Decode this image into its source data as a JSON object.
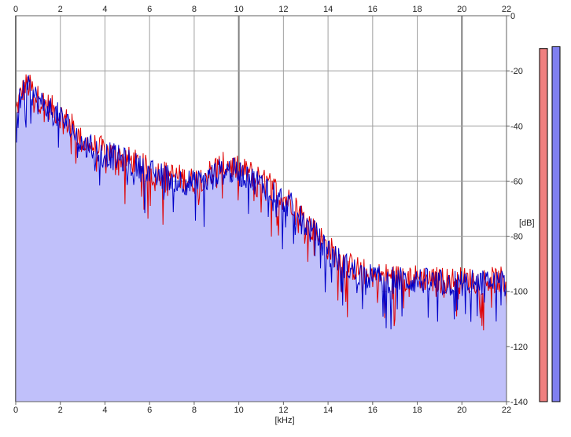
{
  "chart_data": {
    "type": "line",
    "title": "",
    "xlabel": "[kHz]",
    "ylabel": "[dB]",
    "xlim": [
      0,
      22
    ],
    "ylim": [
      -140,
      0
    ],
    "x_ticks": [
      0,
      2,
      4,
      6,
      8,
      10,
      12,
      14,
      16,
      18,
      20,
      22
    ],
    "y_ticks": [
      0,
      -20,
      -40,
      -60,
      -80,
      -100,
      -120,
      -140
    ],
    "major_x_gridlines": [
      0,
      10,
      20
    ],
    "grid": true,
    "colors": {
      "fill": "#c0c0fa",
      "grid": "#a0a0a0",
      "grid_major": "#808080"
    },
    "series": [
      {
        "color": "#e00000",
        "x": [
          0,
          0.25,
          0.5,
          0.75,
          1,
          1.5,
          2,
          2.5,
          3,
          4,
          5,
          6,
          7,
          8,
          8.5,
          9,
          9.5,
          10,
          10.5,
          11,
          11.5,
          12,
          12.5,
          13,
          13.5,
          14,
          14.5,
          15,
          16,
          17,
          18,
          19,
          20,
          21,
          22
        ],
        "values": [
          -35,
          -28,
          -25,
          -27,
          -30,
          -33,
          -36,
          -40,
          -46,
          -49,
          -52,
          -56,
          -58,
          -60,
          -58,
          -55,
          -54,
          -56,
          -57,
          -60,
          -62,
          -66,
          -68,
          -75,
          -79,
          -84,
          -88,
          -91,
          -94,
          -95,
          -95,
          -96,
          -96,
          -96,
          -96
        ]
      },
      {
        "color": "#0000c8",
        "x": [
          0,
          0.25,
          0.5,
          0.75,
          1,
          1.5,
          2,
          2.5,
          3,
          4,
          5,
          6,
          7,
          8,
          8.5,
          9,
          9.5,
          10,
          10.5,
          11,
          11.5,
          12,
          12.5,
          13,
          13.5,
          14,
          14.5,
          15,
          16,
          17,
          18,
          19,
          20,
          21,
          22
        ],
        "values": [
          -36,
          -29,
          -26,
          -28,
          -31,
          -34,
          -37,
          -41,
          -47,
          -50,
          -53,
          -57,
          -59,
          -61,
          -60,
          -57,
          -56,
          -57,
          -59,
          -61,
          -63,
          -67,
          -70,
          -76,
          -80,
          -85,
          -89,
          -92,
          -95,
          -96,
          -96,
          -97,
          -97,
          -97,
          -97
        ]
      }
    ],
    "level_meters": [
      {
        "color": "#f08080",
        "level": 0.96
      },
      {
        "color": "#8080f0",
        "level": 0.965
      }
    ]
  }
}
